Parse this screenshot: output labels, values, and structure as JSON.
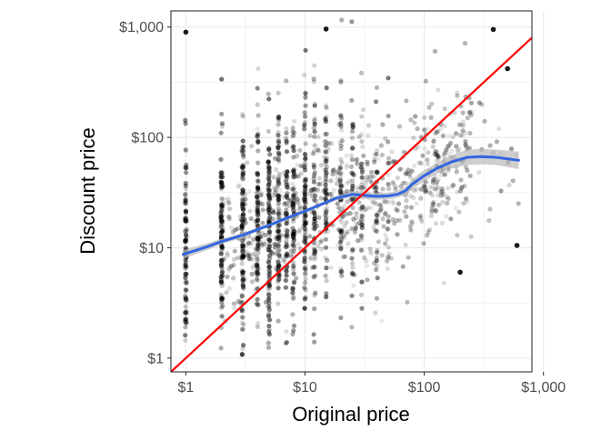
{
  "chart_data": {
    "type": "scatter",
    "title": "",
    "xlabel": "Original price",
    "ylabel": "Discount price",
    "x_scale": "log10",
    "y_scale": "log10",
    "xlim": [
      0.75,
      800
    ],
    "ylim": [
      0.75,
      1400
    ],
    "x_ticks": [
      {
        "value": 1,
        "label": "$1"
      },
      {
        "value": 10,
        "label": "$10"
      },
      {
        "value": 100,
        "label": "$100"
      },
      {
        "value": 1000,
        "label": "$1,000"
      }
    ],
    "y_ticks": [
      {
        "value": 1,
        "label": "$1"
      },
      {
        "value": 10,
        "label": "$10"
      },
      {
        "value": 100,
        "label": "$100"
      },
      {
        "value": 1000,
        "label": "$1,000"
      }
    ],
    "grid": true,
    "colors": {
      "points": "#000000",
      "smooth": "#3366e0",
      "ribbon": "#bdbdbd",
      "identity": "#ff0000",
      "grid": "#ebebeb",
      "panel_border": "#333333"
    },
    "identity_line": {
      "slope": 1,
      "intercept": 0
    },
    "smooth": {
      "x": [
        0.95,
        1.5,
        2,
        3,
        5,
        7,
        10,
        14,
        18,
        25,
        30,
        40,
        50,
        60,
        70,
        80,
        100,
        130,
        170,
        230,
        300,
        400,
        620
      ],
      "y": [
        8.7,
        10.2,
        11.4,
        13.0,
        16.0,
        18.5,
        21.5,
        25.0,
        28.0,
        30.5,
        30.0,
        29.2,
        29.5,
        30.5,
        33.0,
        38.0,
        45.0,
        53.0,
        60.0,
        66.0,
        67.0,
        66.0,
        62.0
      ],
      "ribbon_half_width": [
        0.04,
        0.03,
        0.025,
        0.02,
        0.015,
        0.015,
        0.015,
        0.015,
        0.02,
        0.025,
        0.03,
        0.03,
        0.03,
        0.03,
        0.04,
        0.045,
        0.05,
        0.05,
        0.06,
        0.07,
        0.07,
        0.07,
        0.08
      ]
    },
    "highlight_points": [
      {
        "x": 1,
        "y": 900
      },
      {
        "x": 500,
        "y": 420
      },
      {
        "x": 600,
        "y": 10.5
      },
      {
        "x": 200,
        "y": 6
      },
      {
        "x": 15,
        "y": 960
      },
      {
        "x": 380,
        "y": 950
      }
    ]
  }
}
